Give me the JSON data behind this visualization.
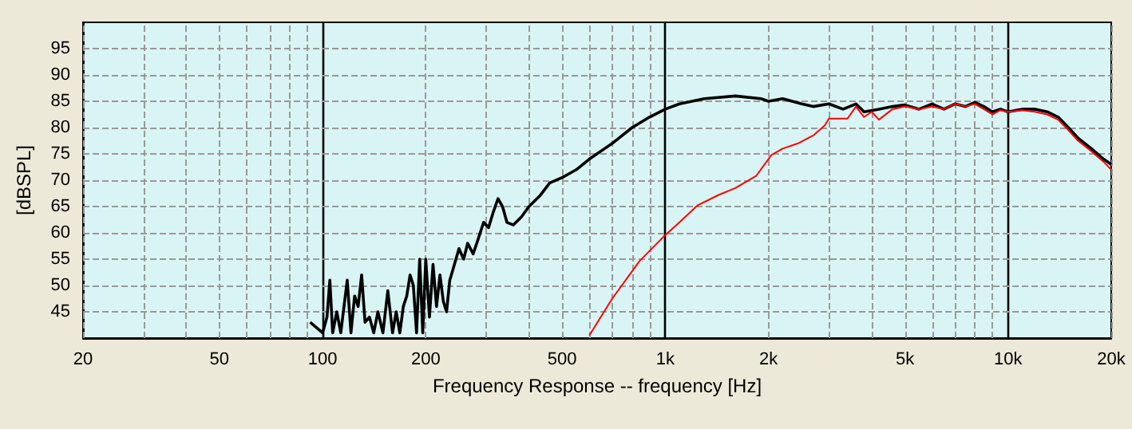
{
  "chart_data": {
    "type": "line",
    "xlabel": "Frequency Response -- frequency [Hz]",
    "ylabel": "[dBSPL]",
    "log": "x",
    "grid": true,
    "marker": "none",
    "line_style": "solid",
    "xlim": [
      20,
      20000
    ],
    "ylim": [
      40,
      100
    ],
    "xticks": [
      20,
      {
        "value": 30,
        "label": null
      },
      {
        "value": 40,
        "label": null
      },
      50,
      {
        "value": 60,
        "label": null
      },
      {
        "value": 70,
        "label": null
      },
      {
        "value": 80,
        "label": null
      },
      {
        "value": 90,
        "label": null
      },
      100,
      200,
      {
        "value": 300,
        "label": null
      },
      {
        "value": 400,
        "label": null
      },
      500,
      {
        "value": 600,
        "label": null
      },
      {
        "value": 700,
        "label": null
      },
      {
        "value": 800,
        "label": null
      },
      {
        "value": 900,
        "label": null
      },
      {
        "value": 1000,
        "label": "1k"
      },
      {
        "value": 2000,
        "label": "2k"
      },
      {
        "value": 3000,
        "label": null
      },
      {
        "value": 4000,
        "label": null
      },
      {
        "value": 5000,
        "label": "5k"
      },
      {
        "value": 6000,
        "label": null
      },
      {
        "value": 7000,
        "label": null
      },
      {
        "value": 8000,
        "label": null
      },
      {
        "value": 9000,
        "label": null
      },
      {
        "value": 10000,
        "label": "10k"
      },
      {
        "value": 20000,
        "label": "20k"
      }
    ],
    "yticks": [
      45,
      50,
      55,
      60,
      65,
      70,
      75,
      80,
      85,
      90,
      95
    ],
    "series": [
      {
        "color": "#000000",
        "x": [
          92,
          96,
          100,
          103,
          105,
          107,
          110,
          113,
          118,
          121,
          124,
          127,
          130,
          133,
          137,
          141,
          145,
          150,
          155,
          160,
          164,
          168,
          172,
          176,
          180,
          184,
          188,
          192,
          196,
          200,
          205,
          210,
          215,
          220,
          225,
          230,
          235,
          240,
          250,
          258,
          265,
          275,
          285,
          295,
          305,
          315,
          325,
          335,
          345,
          360,
          380,
          400,
          430,
          460,
          500,
          550,
          600,
          700,
          800,
          900,
          1000,
          1100,
          1300,
          1600,
          1900,
          2000,
          2200,
          2500,
          2700,
          3000,
          3300,
          3600,
          3800,
          4200,
          4600,
          5000,
          5500,
          6000,
          6500,
          7000,
          7500,
          8000,
          8500,
          9000,
          9500,
          10000,
          11000,
          12000,
          13000,
          14000,
          15000,
          16000,
          17500,
          19000,
          20000
        ],
        "values": [
          43,
          42,
          41,
          44,
          51,
          41,
          45,
          41,
          51,
          41,
          48,
          46,
          52,
          43,
          44,
          41,
          45,
          41,
          49,
          41,
          45,
          41,
          46,
          48,
          52,
          50,
          41,
          55,
          41,
          55,
          44,
          54,
          46,
          52,
          47,
          45,
          51,
          53,
          57,
          55,
          58,
          56,
          59,
          62,
          61,
          64,
          66.5,
          65,
          62,
          61.5,
          63,
          65,
          67,
          69.5,
          70.5,
          72,
          74,
          77,
          80,
          82,
          83.5,
          84.5,
          85.5,
          86,
          85.5,
          85,
          85.5,
          84.5,
          84,
          84.5,
          83.5,
          84.5,
          83,
          83.5,
          84,
          84.3,
          83.5,
          84.5,
          83.5,
          84.5,
          84,
          84.8,
          84,
          83,
          83.5,
          83,
          83.5,
          83.5,
          83,
          82,
          80,
          78,
          76,
          74,
          73
        ]
      },
      {
        "color": "#ff0000",
        "x": [
          600,
          700,
          840,
          1000,
          1100,
          1240,
          1430,
          1600,
          1840,
          2040,
          2200,
          2440,
          2700,
          2920,
          3000,
          3400,
          3600,
          3800,
          4000,
          4200,
          4600,
          5000,
          5500,
          6000,
          6500,
          7000,
          7500,
          8000,
          8500,
          9000,
          9500,
          10000,
          11000,
          12000,
          13000,
          14000,
          15000,
          16000,
          17500,
          19000,
          20000
        ],
        "values": [
          40.5,
          47.5,
          54.6,
          59.6,
          62,
          65.2,
          67.2,
          68.5,
          70.8,
          74.8,
          76,
          77,
          78.5,
          80.4,
          81.7,
          81.7,
          84,
          82,
          83,
          81.5,
          83.5,
          84,
          83.5,
          84,
          83.5,
          84.5,
          84,
          84.5,
          83.5,
          82.5,
          83.3,
          83,
          83.3,
          83,
          82.5,
          81.5,
          79.5,
          77.5,
          75.5,
          73.5,
          72
        ]
      }
    ]
  }
}
